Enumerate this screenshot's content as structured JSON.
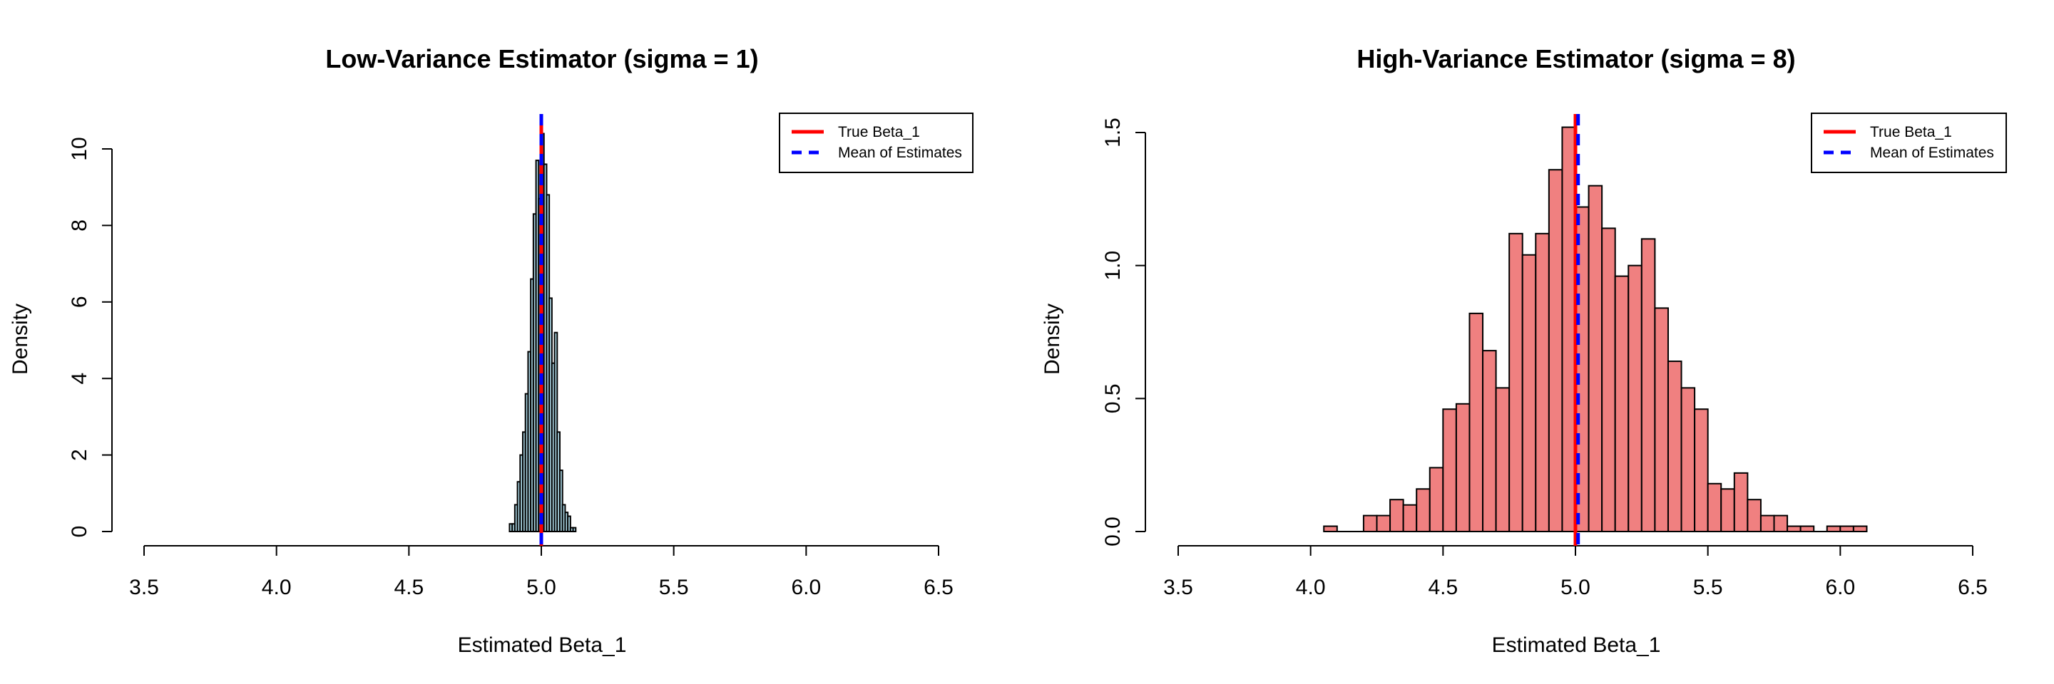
{
  "chart_data": [
    {
      "type": "bar",
      "subtype": "histogram",
      "title": "Low-Variance Estimator (sigma = 1)",
      "xlabel": "Estimated Beta_1",
      "ylabel": "Density",
      "xlim": [
        3.5,
        6.5
      ],
      "ylim": [
        0,
        10
      ],
      "xticks": [
        "3.5",
        "4.0",
        "4.5",
        "5.0",
        "5.5",
        "6.0",
        "6.5"
      ],
      "yticks": [
        "0",
        "2",
        "4",
        "6",
        "8",
        "10"
      ],
      "fill": "#ADD8E6",
      "bin_start": 4.88,
      "bin_width": 0.01,
      "values": [
        0.2,
        0.2,
        0.7,
        1.3,
        2.0,
        2.6,
        3.6,
        4.7,
        6.6,
        8.3,
        9.7,
        8.7,
        10.4,
        9.6,
        8.8,
        6.1,
        4.4,
        5.2,
        2.6,
        1.6,
        0.7,
        0.5,
        0.4,
        0.1,
        0.1
      ],
      "true_beta": 5.0,
      "mean_estimate": 5.0,
      "legend": {
        "position": "top-right",
        "entries": [
          {
            "label": "True Beta_1",
            "color": "#FF0000",
            "style": "solid"
          },
          {
            "label": "Mean of Estimates",
            "color": "#0000FF",
            "style": "dashed"
          }
        ]
      }
    },
    {
      "type": "bar",
      "subtype": "histogram",
      "title": "High-Variance Estimator (sigma = 8)",
      "xlabel": "Estimated Beta_1",
      "ylabel": "Density",
      "xlim": [
        3.5,
        6.5
      ],
      "ylim": [
        0,
        1.5
      ],
      "xticks": [
        "3.5",
        "4.0",
        "4.5",
        "5.0",
        "5.5",
        "6.0",
        "6.5"
      ],
      "yticks": [
        "0.0",
        "0.5",
        "1.0",
        "1.5"
      ],
      "fill": "#F08080",
      "bin_start": 4.05,
      "bin_width": 0.05,
      "values": [
        0.02,
        0,
        0,
        0.06,
        0.06,
        0.12,
        0.1,
        0.16,
        0.24,
        0.46,
        0.48,
        0.82,
        0.68,
        0.54,
        1.12,
        1.04,
        1.12,
        1.36,
        1.52,
        1.22,
        1.3,
        1.14,
        0.96,
        1.0,
        1.1,
        0.84,
        0.64,
        0.54,
        0.46,
        0.18,
        0.16,
        0.22,
        0.12,
        0.06,
        0.06,
        0.02,
        0.02,
        0,
        0.02,
        0.02,
        0.02
      ],
      "true_beta": 5.0,
      "mean_estimate": 5.01,
      "legend": {
        "position": "top-right",
        "entries": [
          {
            "label": "True Beta_1",
            "color": "#FF0000",
            "style": "solid"
          },
          {
            "label": "Mean of Estimates",
            "color": "#0000FF",
            "style": "dashed"
          }
        ]
      }
    }
  ]
}
